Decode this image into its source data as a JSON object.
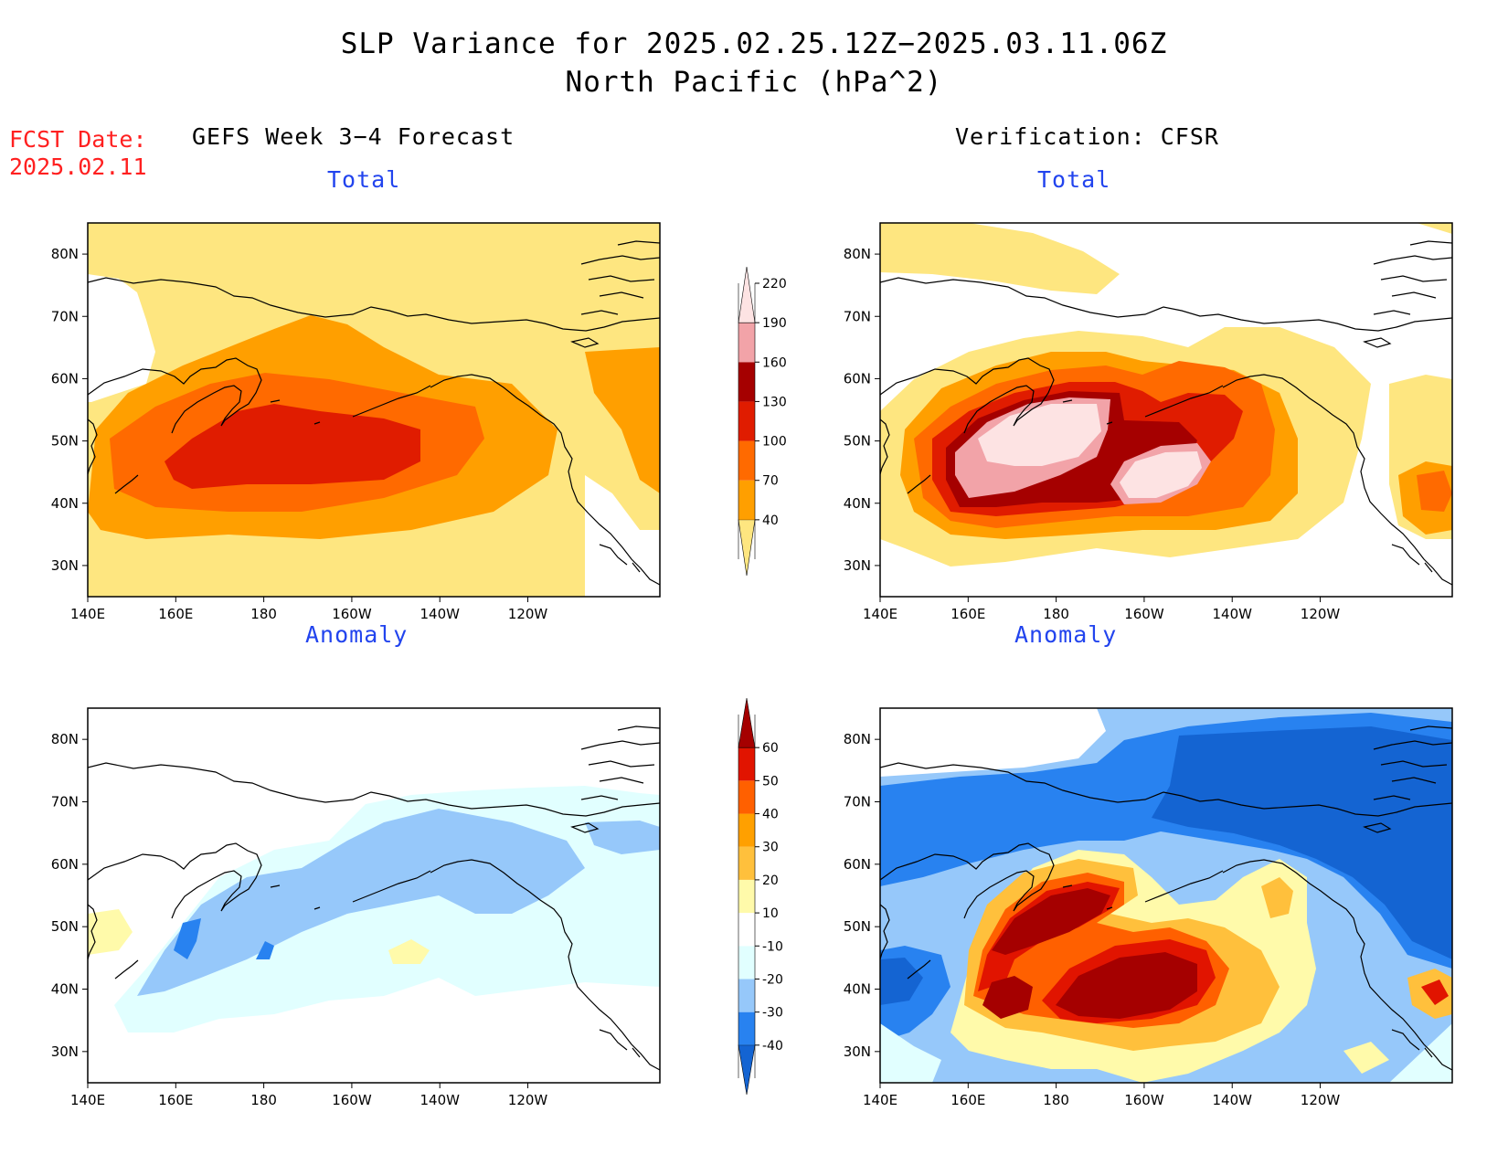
{
  "header": {
    "title_line1": "SLP Variance for 2025.02.25.12Z−2025.03.11.06Z",
    "title_line2": "North Pacific (hPa^2)",
    "fcst_label": "FCST Date:",
    "fcst_date": "2025.02.11"
  },
  "columns": {
    "left": "GEFS Week 3−4 Forecast",
    "right": "Verification: CFSR"
  },
  "panels": {
    "total": "Total",
    "anomaly": "Anomaly"
  },
  "axes": {
    "lat_ticks": [
      "30N",
      "40N",
      "50N",
      "60N",
      "70N",
      "80N"
    ],
    "lon_ticks": [
      "140E",
      "160E",
      "180",
      "160W",
      "140W",
      "120W"
    ]
  },
  "colorbars": {
    "total": {
      "levels": [
        "40",
        "70",
        "100",
        "130",
        "160",
        "190",
        "220"
      ],
      "colors": [
        "#fee680",
        "#ff9f00",
        "#ff6a00",
        "#e01c00",
        "#a50000",
        "#f2a3a8",
        "#fde3e3"
      ]
    },
    "anomaly": {
      "levels": [
        "-40",
        "-30",
        "-20",
        "-10",
        "10",
        "20",
        "30",
        "40",
        "50",
        "60"
      ],
      "colors": [
        "#1464d2",
        "#2882f0",
        "#96c8fa",
        "#e1ffff",
        "#ffffff",
        "#fffaaa",
        "#ffc03c",
        "#ffa000",
        "#ff6000",
        "#e11400",
        "#a50000"
      ]
    }
  },
  "colors": {
    "coast": "#000000",
    "title_blue": "#2244ee",
    "fcst_red": "#ff2020"
  }
}
